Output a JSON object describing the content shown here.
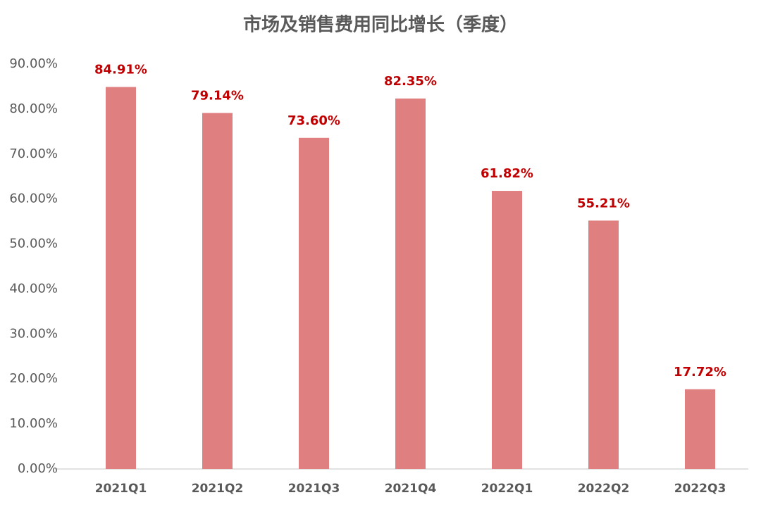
{
  "chart_data": {
    "type": "bar",
    "title": "市场及销售费用同比增长（季度）",
    "categories": [
      "2021Q1",
      "2021Q2",
      "2021Q3",
      "2021Q4",
      "2022Q1",
      "2022Q2",
      "2022Q3"
    ],
    "values": [
      84.91,
      79.14,
      73.6,
      82.35,
      61.82,
      55.21,
      17.72
    ],
    "value_labels": [
      "84.91%",
      "79.14%",
      "73.60%",
      "82.35%",
      "61.82%",
      "55.21%",
      "17.72%"
    ],
    "color": "#e07f7f",
    "label_color": "#c00000",
    "ylim": [
      0,
      90
    ],
    "yticks": [
      {
        "value": 0,
        "label": "0.00%"
      },
      {
        "value": 10,
        "label": "10.00%"
      },
      {
        "value": 20,
        "label": "20.00%"
      },
      {
        "value": 30,
        "label": "30.00%"
      },
      {
        "value": 40,
        "label": "40.00%"
      },
      {
        "value": 50,
        "label": "50.00%"
      },
      {
        "value": 60,
        "label": "60.00%"
      },
      {
        "value": 70,
        "label": "70.00%"
      },
      {
        "value": 80,
        "label": "80.00%"
      },
      {
        "value": 90,
        "label": "90.00%"
      }
    ],
    "grid": false
  }
}
